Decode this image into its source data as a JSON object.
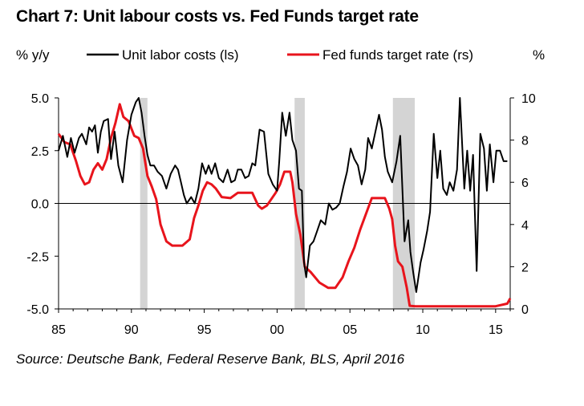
{
  "title": "Chart 7: Unit labour costs vs. Fed Funds target rate",
  "source": "Source: Deutsche Bank, Federal Reserve Bank, BLS, April 2016",
  "colors": {
    "ulc": "#000000",
    "fed": "#e8141c",
    "shade": "#d4d4d4"
  },
  "chart_data": {
    "type": "line",
    "left_axis_label": "% y/y",
    "right_axis_label": "%",
    "left_ylim": [
      -5,
      5
    ],
    "right_ylim": [
      0,
      10
    ],
    "xlim": [
      1985,
      2016
    ],
    "left_ticks": [
      5,
      2.5,
      0,
      -2.5,
      -5
    ],
    "left_tick_labels": [
      "5.0",
      "2.5",
      "0.0",
      "-2.5",
      "-5.0"
    ],
    "right_ticks": [
      10,
      8,
      6,
      4,
      2,
      0
    ],
    "right_tick_labels": [
      "10",
      "8",
      "6",
      "4",
      "2",
      "0"
    ],
    "x_ticks": [
      1985,
      1990,
      1995,
      2000,
      2005,
      2010,
      2015
    ],
    "x_tick_labels": [
      "85",
      "90",
      "95",
      "00",
      "05",
      "10",
      "15"
    ],
    "recessions": [
      [
        1990.6,
        1991.1
      ],
      [
        2001.2,
        2001.9
      ],
      [
        2007.95,
        2009.45
      ]
    ],
    "series": [
      {
        "name": "Unit labor costs (ls)",
        "axis": "left",
        "x": [
          1985,
          1985.3,
          1985.6,
          1985.85,
          1986.1,
          1986.4,
          1986.6,
          1986.9,
          1987.1,
          1987.3,
          1987.5,
          1987.7,
          1987.9,
          1988.1,
          1988.4,
          1988.6,
          1988.85,
          1989.1,
          1989.4,
          1989.7,
          1990,
          1990.3,
          1990.5,
          1990.7,
          1990.9,
          1991.1,
          1991.3,
          1991.55,
          1991.8,
          1992.1,
          1992.4,
          1992.7,
          1993,
          1993.2,
          1993.4,
          1993.6,
          1993.8,
          1994.1,
          1994.35,
          1994.6,
          1994.85,
          1995.1,
          1995.3,
          1995.5,
          1995.75,
          1996,
          1996.3,
          1996.6,
          1996.85,
          1997.1,
          1997.3,
          1997.55,
          1997.8,
          1998.05,
          1998.3,
          1998.5,
          1998.8,
          1999.1,
          1999.4,
          1999.7,
          2000,
          2000.15,
          2000.35,
          2000.6,
          2000.85,
          2001.05,
          2001.3,
          2001.5,
          2001.7,
          2001.85,
          2002,
          2002.25,
          2002.5,
          2002.75,
          2003,
          2003.3,
          2003.55,
          2003.8,
          2004.05,
          2004.3,
          2004.55,
          2004.8,
          2005.05,
          2005.3,
          2005.55,
          2005.8,
          2006.05,
          2006.25,
          2006.5,
          2006.75,
          2007,
          2007.2,
          2007.4,
          2007.6,
          2007.9,
          2008.2,
          2008.45,
          2008.75,
          2009,
          2009.15,
          2009.35,
          2009.55,
          2009.85,
          2010.05,
          2010.3,
          2010.5,
          2010.75,
          2011,
          2011.2,
          2011.4,
          2011.65,
          2011.85,
          2012.1,
          2012.35,
          2012.55,
          2012.85,
          2013.05,
          2013.25,
          2013.45,
          2013.7,
          2013.95,
          2014.2,
          2014.4,
          2014.6,
          2014.85,
          2015.05,
          2015.3,
          2015.55,
          2015.8
        ],
        "values": [
          2.5,
          3.2,
          2.2,
          3.1,
          2.4,
          3.1,
          3.3,
          2.8,
          3.6,
          3.4,
          3.7,
          2.4,
          3.4,
          3.9,
          4.0,
          2.1,
          3.4,
          1.8,
          1.0,
          3.0,
          4.2,
          4.8,
          5.0,
          4.3,
          3.2,
          2.3,
          1.8,
          1.8,
          1.5,
          1.3,
          0.7,
          1.4,
          1.8,
          1.6,
          1.0,
          0.4,
          0.0,
          0.3,
          0.0,
          0.7,
          1.9,
          1.4,
          1.8,
          1.4,
          1.9,
          1.2,
          1.0,
          1.6,
          1.0,
          1.1,
          1.6,
          1.6,
          1.2,
          1.3,
          1.9,
          1.8,
          3.5,
          3.4,
          1.4,
          0.9,
          0.6,
          2.0,
          4.3,
          3.2,
          4.3,
          3.0,
          2.5,
          0.7,
          0.6,
          -2.8,
          -3.5,
          -2.0,
          -1.8,
          -1.3,
          -0.8,
          -1.0,
          0.0,
          -0.3,
          -0.2,
          0.0,
          0.8,
          1.5,
          2.6,
          2.1,
          1.8,
          0.9,
          1.6,
          3.1,
          2.6,
          3.4,
          4.2,
          3.5,
          2.2,
          1.5,
          1.0,
          2.0,
          3.2,
          -1.8,
          -0.8,
          -2.3,
          -3.3,
          -4.2,
          -2.8,
          -2.2,
          -1.3,
          -0.4,
          3.3,
          1.2,
          2.5,
          0.7,
          0.4,
          1.0,
          0.6,
          1.6,
          5.0,
          0.7,
          2.5,
          0.6,
          2.3,
          -3.2,
          3.3,
          2.6,
          0.6,
          2.8,
          1.0,
          2.5,
          2.5,
          2.0,
          2.0
        ]
      },
      {
        "name": "Fed funds target rate (rs)",
        "axis": "right",
        "x": [
          1985,
          1985.4,
          1985.8,
          1986.2,
          1986.5,
          1986.8,
          1987.1,
          1987.4,
          1987.7,
          1988.0,
          1988.3,
          1988.6,
          1988.9,
          1989.2,
          1989.45,
          1989.8,
          1990.2,
          1990.5,
          1990.8,
          1991.1,
          1991.4,
          1991.7,
          1992.0,
          1992.4,
          1992.8,
          1993.5,
          1994.0,
          1994.3,
          1994.6,
          1994.9,
          1995.2,
          1995.5,
          1995.8,
          1996.2,
          1996.8,
          1997.3,
          1997.8,
          1998.3,
          1998.7,
          1998.95,
          1999.3,
          1999.6,
          1999.9,
          2000.2,
          2000.5,
          2000.9,
          2001.05,
          2001.3,
          2001.6,
          2001.9,
          2002.3,
          2002.9,
          2003.5,
          2004.0,
          2004.5,
          2004.9,
          2005.3,
          2005.7,
          2006.1,
          2006.5,
          2006.9,
          2007.4,
          2007.7,
          2007.9,
          2008.1,
          2008.3,
          2008.6,
          2008.9,
          2009.1,
          2009.5,
          2010,
          2011,
          2012,
          2013,
          2014,
          2015,
          2015.8,
          2016
        ],
        "values": [
          8.3,
          7.9,
          7.8,
          7.0,
          6.3,
          5.9,
          6.0,
          6.6,
          6.9,
          6.6,
          7.1,
          8.1,
          8.8,
          9.7,
          9.1,
          8.9,
          8.2,
          8.1,
          7.6,
          6.3,
          5.8,
          5.2,
          4.0,
          3.2,
          3.0,
          3.0,
          3.3,
          4.3,
          4.9,
          5.6,
          6.0,
          5.9,
          5.7,
          5.3,
          5.25,
          5.5,
          5.5,
          5.5,
          4.9,
          4.75,
          4.9,
          5.2,
          5.5,
          5.9,
          6.5,
          6.5,
          6.0,
          4.5,
          3.5,
          2.0,
          1.75,
          1.25,
          1.0,
          1.0,
          1.5,
          2.25,
          2.9,
          3.75,
          4.5,
          5.25,
          5.25,
          5.25,
          4.75,
          4.25,
          3.0,
          2.25,
          2.0,
          1.0,
          0.15,
          0.125,
          0.125,
          0.125,
          0.125,
          0.125,
          0.125,
          0.125,
          0.25,
          0.5
        ]
      }
    ]
  }
}
